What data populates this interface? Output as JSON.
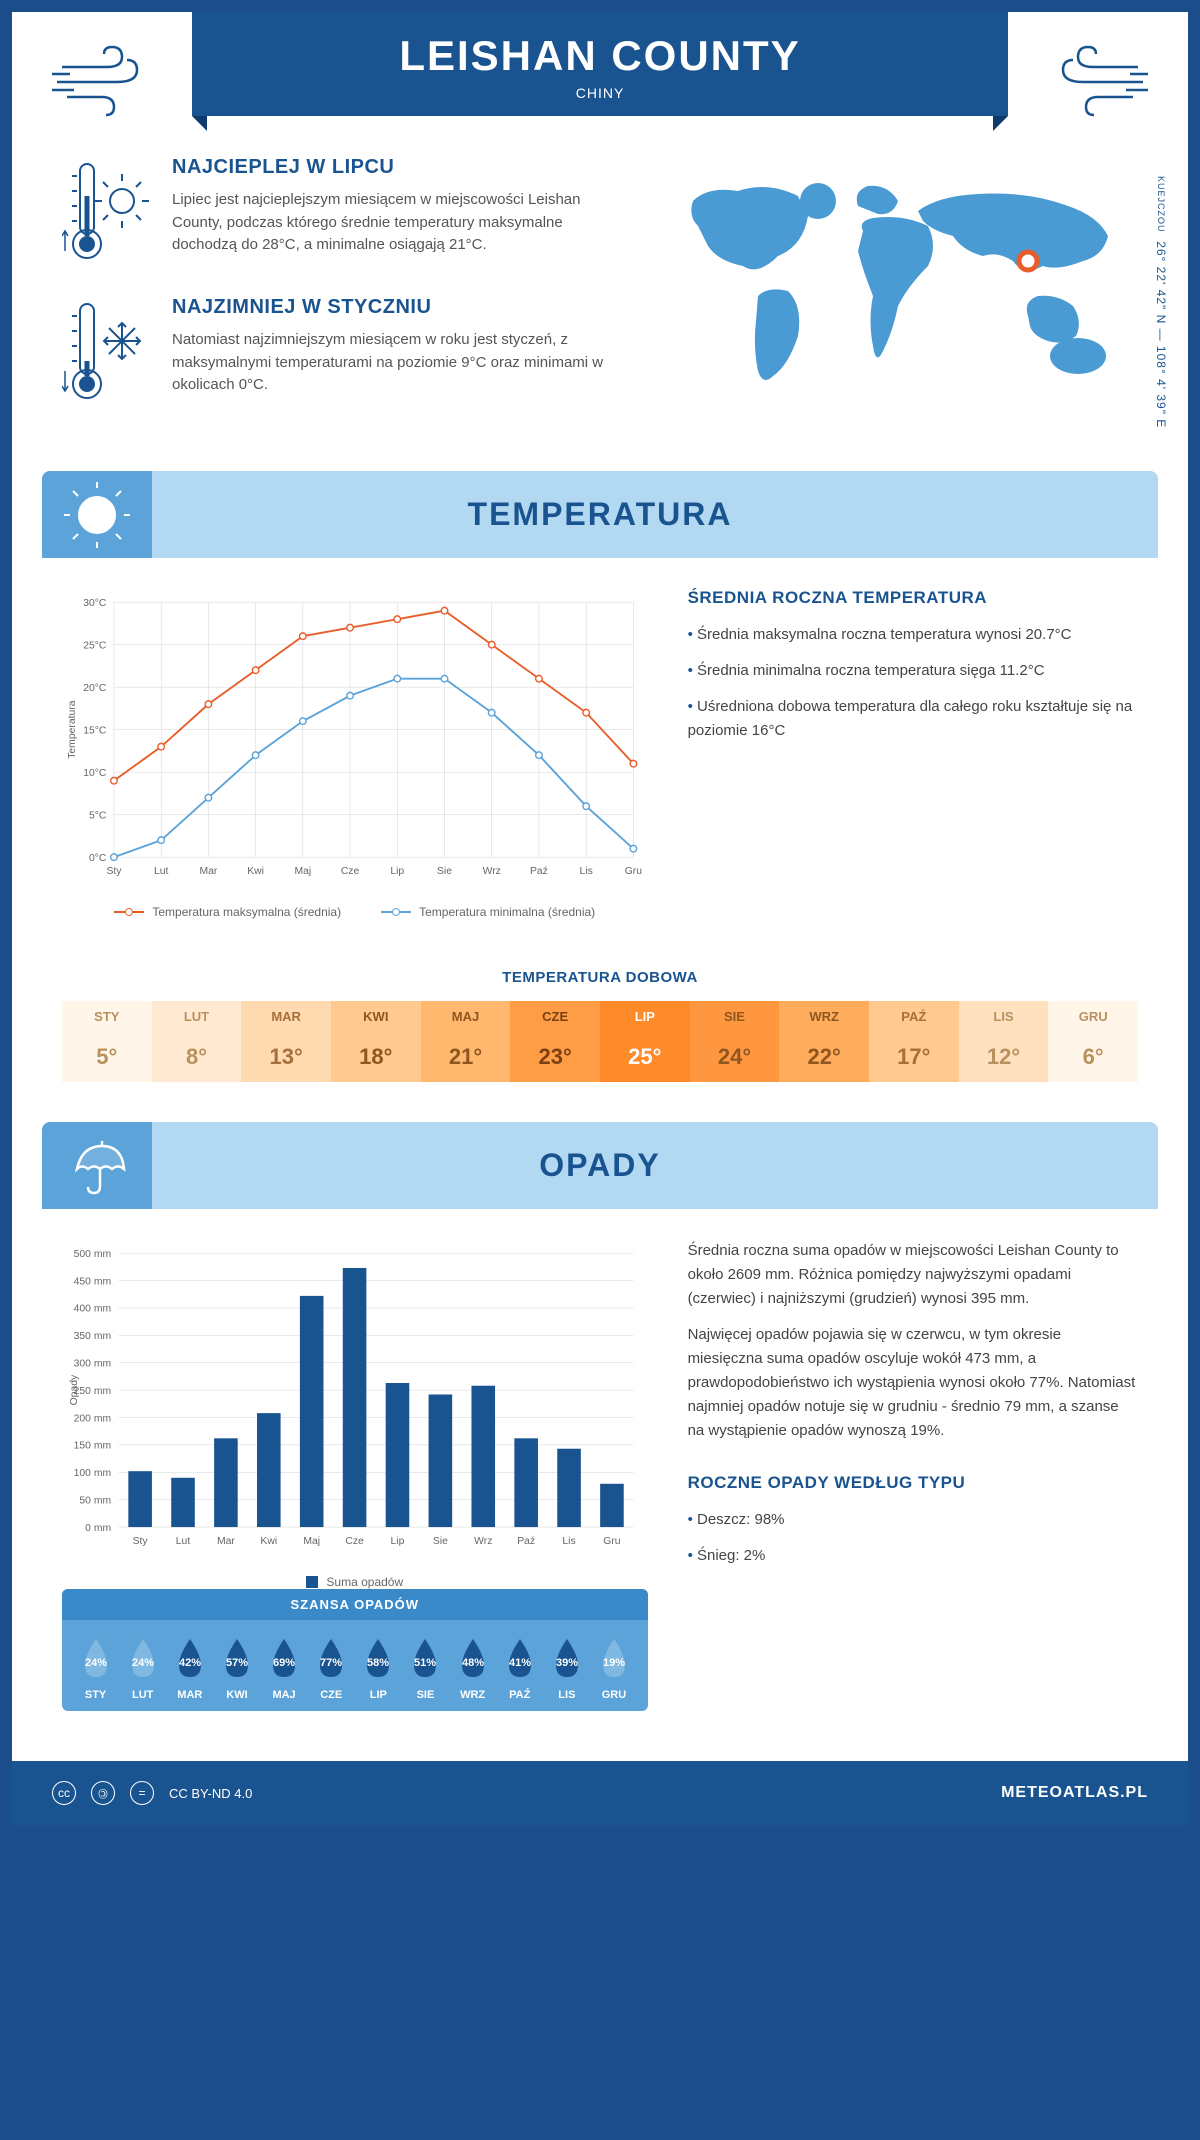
{
  "header": {
    "title": "LEISHAN COUNTY",
    "subtitle": "CHINY"
  },
  "coords": {
    "text": "26° 22' 42\" N — 108° 4' 39\" E",
    "region": "KUEJCZOU"
  },
  "intro": {
    "warmest": {
      "title": "NAJCIEPLEJ W LIPCU",
      "text": "Lipiec jest najcieplejszym miesiącem w miejscowości Leishan County, podczas którego średnie temperatury maksymalne dochodzą do 28°C, a minimalne osiągają 21°C."
    },
    "coldest": {
      "title": "NAJZIMNIEJ W STYCZNIU",
      "text": "Natomiast najzimniejszym miesiącem w roku jest styczeń, z maksymalnymi temperaturami na poziomie 9°C oraz minimami w okolicach 0°C."
    }
  },
  "temperature": {
    "section_title": "TEMPERATURA",
    "chart": {
      "type": "line",
      "months": [
        "Sty",
        "Lut",
        "Mar",
        "Kwi",
        "Maj",
        "Cze",
        "Lip",
        "Sie",
        "Wrz",
        "Paź",
        "Lis",
        "Gru"
      ],
      "series": {
        "max": {
          "label": "Temperatura maksymalna (średnia)",
          "color": "#e85d2a",
          "values": [
            9,
            13,
            18,
            22,
            26,
            27,
            28,
            29,
            25,
            21,
            17,
            11
          ]
        },
        "min": {
          "label": "Temperatura minimalna (średnia)",
          "color": "#5ba3d9",
          "values": [
            0,
            2,
            7,
            12,
            16,
            19,
            21,
            21,
            17,
            12,
            6,
            1
          ]
        }
      },
      "ylim": [
        0,
        30
      ],
      "ytick_step": 5,
      "y_suffix": "°C",
      "ylabel": "Temperatura",
      "grid_color": "#d0d0d0",
      "background": "#ffffff"
    },
    "annual": {
      "title": "ŚREDNIA ROCZNA TEMPERATURA",
      "bullets": [
        "Średnia maksymalna roczna temperatura wynosi 20.7°C",
        "Średnia minimalna roczna temperatura sięga 11.2°C",
        "Uśredniona dobowa temperatura dla całego roku kształtuje się na poziomie 16°C"
      ]
    },
    "daily": {
      "title": "TEMPERATURA DOBOWA",
      "months": [
        "STY",
        "LUT",
        "MAR",
        "KWI",
        "MAJ",
        "CZE",
        "LIP",
        "SIE",
        "WRZ",
        "PAŹ",
        "LIS",
        "GRU"
      ],
      "values": [
        "5°",
        "8°",
        "13°",
        "18°",
        "21°",
        "23°",
        "25°",
        "24°",
        "22°",
        "17°",
        "12°",
        "6°"
      ],
      "bg_colors": [
        "#fff5e8",
        "#ffe9d0",
        "#ffd9b0",
        "#ffc98f",
        "#ffb86e",
        "#ff9d47",
        "#ff8a2a",
        "#ff9640",
        "#ffad5c",
        "#ffc98f",
        "#ffe0bf",
        "#fff5e8"
      ],
      "text_colors": [
        "#b8915f",
        "#b8915f",
        "#a86f3a",
        "#8f5620",
        "#8f5620",
        "#7a4010",
        "#ffffff",
        "#8f5620",
        "#8f5620",
        "#a86f3a",
        "#b8915f",
        "#b8915f"
      ]
    }
  },
  "precipitation": {
    "section_title": "OPADY",
    "chart": {
      "type": "bar",
      "months": [
        "Sty",
        "Lut",
        "Mar",
        "Kwi",
        "Maj",
        "Cze",
        "Lip",
        "Sie",
        "Wrz",
        "Paź",
        "Lis",
        "Gru"
      ],
      "values": [
        102,
        90,
        162,
        208,
        422,
        473,
        263,
        242,
        258,
        162,
        143,
        79
      ],
      "bar_color": "#1a5490",
      "ylim": [
        0,
        500
      ],
      "ytick_step": 50,
      "y_suffix": " mm",
      "ylabel": "Opady",
      "legend_label": "Suma opadów",
      "grid_color": "#d0d0d0"
    },
    "text": {
      "p1": "Średnia roczna suma opadów w miejscowości Leishan County to około 2609 mm. Różnica pomiędzy najwyższymi opadami (czerwiec) i najniższymi (grudzień) wynosi 395 mm.",
      "p2": "Najwięcej opadów pojawia się w czerwcu, w tym okresie miesięczna suma opadów oscyluje wokół 473 mm, a prawdopodobieństwo ich wystąpienia wynosi około 77%. Natomiast najmniej opadów notuje się w grudniu - średnio 79 mm, a szanse na wystąpienie opadów wynoszą 19%."
    },
    "by_type": {
      "title": "ROCZNE OPADY WEDŁUG TYPU",
      "bullets": [
        "Deszcz: 98%",
        "Śnieg: 2%"
      ]
    },
    "chance": {
      "title": "SZANSA OPADÓW",
      "months": [
        "STY",
        "LUT",
        "MAR",
        "KWI",
        "MAJ",
        "CZE",
        "LIP",
        "SIE",
        "WRZ",
        "PAŹ",
        "LIS",
        "GRU"
      ],
      "values": [
        "24%",
        "24%",
        "42%",
        "57%",
        "69%",
        "77%",
        "58%",
        "51%",
        "48%",
        "41%",
        "39%",
        "19%"
      ],
      "fill_colors": [
        "#7fb8e0",
        "#7fb8e0",
        "#1a5490",
        "#1a5490",
        "#1a5490",
        "#1a5490",
        "#1a5490",
        "#1a5490",
        "#1a5490",
        "#1a5490",
        "#1a5490",
        "#7fb8e0"
      ]
    }
  },
  "footer": {
    "license": "CC BY-ND 4.0",
    "site": "METEOATLAS.PL"
  },
  "colors": {
    "primary": "#1a5490",
    "light_blue": "#b3d9f2",
    "mid_blue": "#5ba3d9"
  }
}
